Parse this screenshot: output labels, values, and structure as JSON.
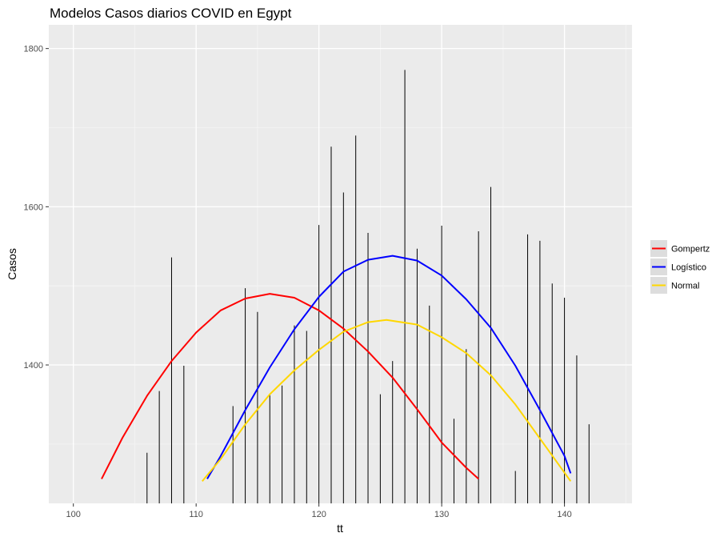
{
  "chart_data": {
    "type": "line",
    "title": "Modelos Casos diarios COVID en Egypt",
    "xlabel": "tt",
    "ylabel": "Casos",
    "xlim": [
      98,
      145.5
    ],
    "ylim": [
      1225,
      1830
    ],
    "xticks": [
      100,
      110,
      120,
      130,
      140
    ],
    "yticks": [
      1400,
      1600,
      1800
    ],
    "grid": true,
    "legend_position": "right",
    "bars": {
      "x": [
        106,
        107,
        108,
        109,
        113,
        114,
        115,
        116,
        117,
        118,
        119,
        120,
        121,
        122,
        123,
        124,
        125,
        126,
        127,
        128,
        129,
        130,
        131,
        132,
        133,
        134,
        136,
        137,
        138,
        139,
        140,
        141,
        142
      ],
      "values": [
        1289,
        1367,
        1536,
        1399,
        1348,
        1497,
        1467,
        1362,
        1374,
        1450,
        1443,
        1577,
        1676,
        1618,
        1690,
        1567,
        1363,
        1405,
        1773,
        1547,
        1475,
        1576,
        1332,
        1420,
        1569,
        1625,
        1266,
        1565,
        1557,
        1503,
        1485,
        1412,
        1325
      ]
    },
    "series": [
      {
        "name": "Gompertz",
        "color": "#FF0000",
        "x": [
          102.3,
          104,
          106,
          108,
          110,
          112,
          114,
          116,
          118,
          120,
          122,
          124,
          126,
          128,
          130,
          132,
          133
        ],
        "values": [
          1256,
          1308,
          1361,
          1405,
          1441,
          1469,
          1484,
          1490,
          1485,
          1469,
          1446,
          1417,
          1384,
          1344,
          1302,
          1270,
          1256
        ]
      },
      {
        "name": "Logístico",
        "color": "#0000FF",
        "x": [
          110.9,
          112,
          114,
          116,
          118,
          120,
          122,
          124,
          126,
          128,
          130,
          132,
          134,
          136,
          138,
          140,
          140.5
        ],
        "values": [
          1256,
          1285,
          1343,
          1397,
          1445,
          1486,
          1518,
          1533,
          1538,
          1532,
          1513,
          1483,
          1447,
          1399,
          1343,
          1285,
          1263
        ]
      },
      {
        "name": "Normal",
        "color": "#FFD700",
        "x": [
          110.5,
          112,
          114,
          116,
          118,
          120,
          122,
          124,
          125.5,
          128,
          130,
          132,
          134,
          136,
          138,
          140.5
        ],
        "values": [
          1253,
          1281,
          1325,
          1363,
          1393,
          1419,
          1442,
          1454,
          1457,
          1451,
          1435,
          1415,
          1387,
          1350,
          1307,
          1253
        ]
      }
    ]
  }
}
